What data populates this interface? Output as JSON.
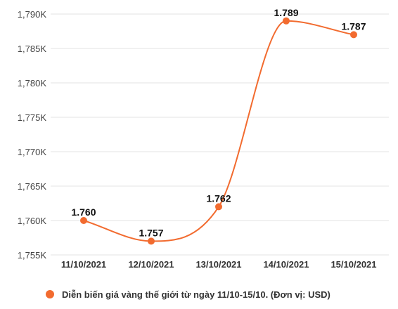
{
  "chart_data": {
    "type": "line",
    "categories": [
      "11/10/2021",
      "12/10/2021",
      "13/10/2021",
      "14/10/2021",
      "15/10/2021"
    ],
    "series": [
      {
        "name": "Diễn biến giá vàng thế giới từ ngày 11/10-15/10. (Đơn vị: USD)",
        "values": [
          1760,
          1757,
          1762,
          1789,
          1787
        ],
        "data_labels": [
          "1.760",
          "1.757",
          "1.762",
          "1.789",
          "1.787"
        ],
        "color": "#f26b2f"
      }
    ],
    "y_ticks": [
      1755,
      1760,
      1765,
      1770,
      1775,
      1780,
      1785,
      1790
    ],
    "y_tick_labels": [
      "1,755K",
      "1,760K",
      "1,765K",
      "1,770K",
      "1,775K",
      "1,780K",
      "1,785K",
      "1,790K"
    ],
    "ylim": [
      1755,
      1790
    ],
    "grid": true,
    "smooth": true,
    "legend_position": "bottom",
    "title": "",
    "xlabel": "",
    "ylabel": ""
  }
}
